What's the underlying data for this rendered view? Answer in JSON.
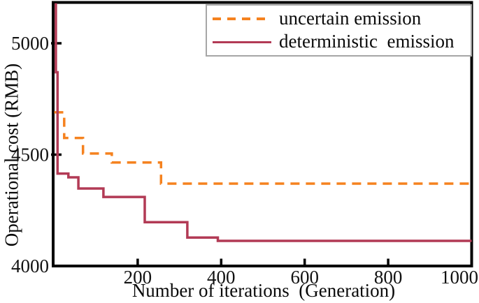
{
  "chart_data": {
    "type": "line",
    "subtype": "step",
    "title": "",
    "xlabel": "Number of iterations  (Generation)",
    "ylabel": "Operational cost (RMB)",
    "xlim": [
      0,
      1000
    ],
    "ylim": [
      4000,
      5180
    ],
    "xticks": [
      200,
      400,
      600,
      800,
      1000
    ],
    "yticks": [
      4000,
      4500,
      5000
    ],
    "grid": false,
    "frame_color": "#000000",
    "tick_label_color": "#111111",
    "legend_position": "top-right",
    "legend_border_color": "#a6a6a6",
    "series": [
      {
        "name": "uncertain emission",
        "color": "#F5821F",
        "line_style": "dashed",
        "step_points": [
          [
            0,
            4690
          ],
          [
            24,
            4690
          ],
          [
            24,
            4575
          ],
          [
            69,
            4575
          ],
          [
            69,
            4505
          ],
          [
            138,
            4505
          ],
          [
            138,
            4465
          ],
          [
            256,
            4465
          ],
          [
            256,
            4370
          ],
          [
            1000,
            4370
          ]
        ]
      },
      {
        "name": "deterministic  emission",
        "color": "#B23A55",
        "line_style": "solid",
        "step_points": [
          [
            4,
            5180
          ],
          [
            4,
            4870
          ],
          [
            8,
            4870
          ],
          [
            8,
            4415
          ],
          [
            34,
            4415
          ],
          [
            34,
            4398
          ],
          [
            58,
            4398
          ],
          [
            58,
            4348
          ],
          [
            118,
            4348
          ],
          [
            118,
            4310
          ],
          [
            217,
            4310
          ],
          [
            217,
            4197
          ],
          [
            319,
            4197
          ],
          [
            319,
            4128
          ],
          [
            392,
            4128
          ],
          [
            392,
            4113
          ],
          [
            1000,
            4113
          ]
        ]
      }
    ]
  }
}
